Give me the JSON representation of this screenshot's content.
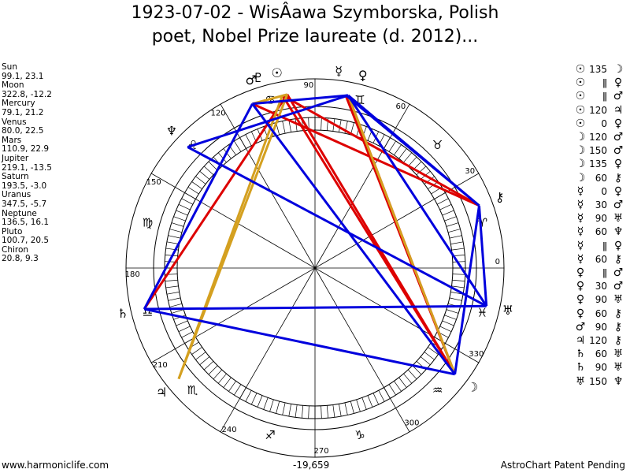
{
  "title_lines": [
    "1923-07-02 - WisÂawa Szymborska, Polish",
    "poet, Nobel Prize laureate (d. 2012)..."
  ],
  "planets": [
    {
      "name": "Sun",
      "glyph": "☉",
      "values": "99.1, 23.1",
      "lon": 99.1
    },
    {
      "name": "Moon",
      "glyph": "☽",
      "values": "322.8, -12.2",
      "lon": 322.8
    },
    {
      "name": "Mercury",
      "glyph": "☿",
      "values": "79.1, 21.2",
      "lon": 79.1
    },
    {
      "name": "Venus",
      "glyph": "♀",
      "values": "80.0, 22.5",
      "lon": 80.0
    },
    {
      "name": "Mars",
      "glyph": "♂",
      "values": "110.9, 22.9",
      "lon": 110.9
    },
    {
      "name": "Jupiter",
      "glyph": "♃",
      "values": "219.1, -13.5",
      "lon": 219.1
    },
    {
      "name": "Saturn",
      "glyph": "♄",
      "values": "193.5, -3.0",
      "lon": 193.5
    },
    {
      "name": "Uranus",
      "glyph": "♅",
      "values": "347.5, -5.7",
      "lon": 347.5
    },
    {
      "name": "Neptune",
      "glyph": "♆",
      "values": "136.5, 16.1",
      "lon": 136.5
    },
    {
      "name": "Pluto",
      "glyph": "♇",
      "values": "100.7, 20.5",
      "lon": 100.7
    },
    {
      "name": "Chiron",
      "glyph": "⚷",
      "values": "20.8, 9.3",
      "lon": 20.8
    }
  ],
  "aspects": [
    {
      "p1": "☉",
      "angle": "135",
      "p2": "☽"
    },
    {
      "p1": "☉",
      "angle": "ǁ",
      "p2": "♀"
    },
    {
      "p1": "☉",
      "angle": "ǁ",
      "p2": "♂"
    },
    {
      "p1": "☉",
      "angle": "120",
      "p2": "♃"
    },
    {
      "p1": "☉",
      "angle": "0",
      "p2": "♀"
    },
    {
      "p1": "☽",
      "angle": "120",
      "p2": "♂"
    },
    {
      "p1": "☽",
      "angle": "150",
      "p2": "♂"
    },
    {
      "p1": "☽",
      "angle": "135",
      "p2": "♀"
    },
    {
      "p1": "☽",
      "angle": "60",
      "p2": "⚷"
    },
    {
      "p1": "☿",
      "angle": "0",
      "p2": "♀"
    },
    {
      "p1": "☿",
      "angle": "30",
      "p2": "♂"
    },
    {
      "p1": "☿",
      "angle": "90",
      "p2": "♅"
    },
    {
      "p1": "☿",
      "angle": "60",
      "p2": "♆"
    },
    {
      "p1": "☿",
      "angle": "ǁ",
      "p2": "♀"
    },
    {
      "p1": "☿",
      "angle": "60",
      "p2": "⚷"
    },
    {
      "p1": "♀",
      "angle": "ǁ",
      "p2": "♂"
    },
    {
      "p1": "♀",
      "angle": "30",
      "p2": "♂"
    },
    {
      "p1": "♀",
      "angle": "90",
      "p2": "♅"
    },
    {
      "p1": "♀",
      "angle": "60",
      "p2": "⚷"
    },
    {
      "p1": "♂",
      "angle": "90",
      "p2": "⚷"
    },
    {
      "p1": "♃",
      "angle": "120",
      "p2": "⚷"
    },
    {
      "p1": "♄",
      "angle": "60",
      "p2": "♅"
    },
    {
      "p1": "♄",
      "angle": "90",
      "p2": "♅"
    },
    {
      "p1": "♅",
      "angle": "150",
      "p2": "♆"
    }
  ],
  "degree_labels": [
    "0",
    "30",
    "60",
    "90",
    "120",
    "150",
    "180",
    "210",
    "240",
    "270",
    "300",
    "330"
  ],
  "zodiac_glyphs": [
    "♈",
    "♉",
    "♊",
    "♋",
    "♌",
    "♍",
    "♎",
    "♏",
    "♐",
    "♑",
    "♒",
    "♓"
  ],
  "aspect_lines": [
    {
      "from": "Sun",
      "to": "Moon",
      "color": "#dd0000"
    },
    {
      "from": "Pluto",
      "to": "Moon",
      "color": "#dd0000"
    },
    {
      "from": "Mercury",
      "to": "Moon",
      "color": "#dd0000"
    },
    {
      "from": "Venus",
      "to": "Moon",
      "color": "#dd0000"
    },
    {
      "from": "Sun",
      "to": "Saturn",
      "color": "#dd0000"
    },
    {
      "from": "Pluto",
      "to": "Chiron",
      "color": "#dd0000"
    },
    {
      "from": "Mars",
      "to": "Chiron",
      "color": "#dd0000"
    },
    {
      "from": "Sun",
      "to": "Jupiter",
      "color": "#d4a020"
    },
    {
      "from": "Pluto",
      "to": "Jupiter",
      "color": "#d4a020"
    },
    {
      "from": "Mercury",
      "to": "Moon",
      "color": "#d4a020"
    },
    {
      "from": "Sun",
      "to": "Mars",
      "color": "#d4a020"
    },
    {
      "from": "Mars",
      "to": "Mercury",
      "color": "#0000dd"
    },
    {
      "from": "Neptune",
      "to": "Mercury",
      "color": "#0000dd"
    },
    {
      "from": "Neptune",
      "to": "Uranus",
      "color": "#0000dd"
    },
    {
      "from": "Mercury",
      "to": "Chiron",
      "color": "#0000dd"
    },
    {
      "from": "Venus",
      "to": "Chiron",
      "color": "#0000dd"
    },
    {
      "from": "Mercury",
      "to": "Uranus",
      "color": "#0000dd"
    },
    {
      "from": "Chiron",
      "to": "Moon",
      "color": "#0000dd"
    },
    {
      "from": "Saturn",
      "to": "Mars",
      "color": "#0000dd"
    },
    {
      "from": "Uranus",
      "to": "Saturn",
      "color": "#0000dd"
    },
    {
      "from": "Saturn",
      "to": "Moon",
      "color": "#0000dd"
    },
    {
      "from": "Chiron",
      "to": "Uranus",
      "color": "#0000dd"
    },
    {
      "from": "Mars",
      "to": "Moon",
      "color": "#0000dd"
    }
  ],
  "footer": {
    "left": "www.harmoniclife.com",
    "center": "-19,659",
    "right": "AstroChart Patent Pending"
  }
}
